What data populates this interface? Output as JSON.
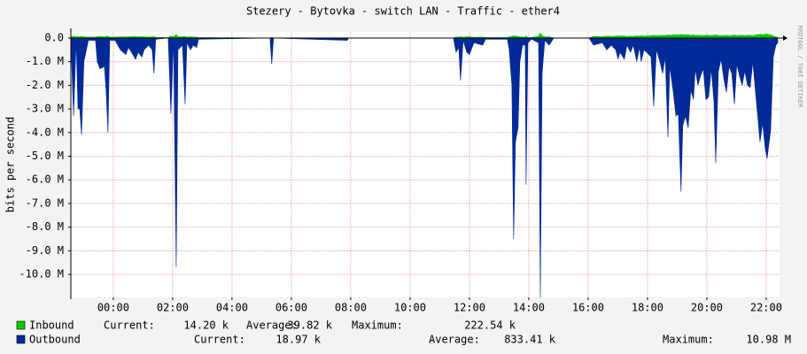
{
  "chart_data": {
    "type": "area",
    "title": "Stezery - Bytovka - switch LAN - Traffic - ether4",
    "y_label": "bits per second",
    "side_note": "RRDTOOL / TOBI OETIKER",
    "xlim": [
      -1.43,
      22.45
    ],
    "xticks": [
      {
        "value": 0,
        "label": "00:00"
      },
      {
        "value": 2,
        "label": "02:00"
      },
      {
        "value": 4,
        "label": "04:00"
      },
      {
        "value": 6,
        "label": "06:00"
      },
      {
        "value": 8,
        "label": "08:00"
      },
      {
        "value": 10,
        "label": "10:00"
      },
      {
        "value": 12,
        "label": "12:00"
      },
      {
        "value": 14,
        "label": "14:00"
      },
      {
        "value": 16,
        "label": "16:00"
      },
      {
        "value": 18,
        "label": "18:00"
      },
      {
        "value": 20,
        "label": "20:00"
      },
      {
        "value": 22,
        "label": "22:00"
      }
    ],
    "ylim": [
      -10.97,
      0.26
    ],
    "yticks": [
      {
        "value": 0,
        "label": "0.0"
      },
      {
        "value": -1,
        "label": "-1.0 M"
      },
      {
        "value": -2,
        "label": "-2.0 M"
      },
      {
        "value": -3,
        "label": "-3.0 M"
      },
      {
        "value": -4,
        "label": "-4.0 M"
      },
      {
        "value": -5,
        "label": "-5.0 M"
      },
      {
        "value": -6,
        "label": "-6.0 M"
      },
      {
        "value": -7,
        "label": "-7.0 M"
      },
      {
        "value": -8,
        "label": "-8.0 M"
      },
      {
        "value": -9,
        "label": "-9.0 M"
      },
      {
        "value": -10,
        "label": "-10.0 M"
      }
    ],
    "grid": true,
    "x": [
      -1.43,
      -1.34,
      -1.25,
      -1.19,
      -1.13,
      -1.07,
      -0.99,
      -0.84,
      -0.6,
      -0.54,
      -0.45,
      -0.3,
      -0.24,
      -0.18,
      -0.12,
      0.06,
      0.24,
      0.42,
      0.51,
      0.66,
      0.75,
      0.84,
      0.96,
      1.04,
      1.19,
      1.31,
      1.37,
      1.43,
      1.85,
      1.94,
      2.03,
      2.12,
      2.18,
      2.33,
      2.42,
      2.48,
      2.6,
      2.69,
      2.81,
      2.87,
      5.28,
      5.34,
      5.4,
      7.88,
      7.94,
      11.46,
      11.55,
      11.64,
      11.7,
      11.79,
      11.91,
      12.0,
      12.15,
      12.45,
      12.54,
      13.28,
      13.34,
      13.43,
      13.49,
      13.55,
      13.64,
      13.7,
      13.79,
      13.88,
      13.91,
      13.97,
      14.09,
      14.33,
      14.39,
      14.45,
      14.54,
      14.69,
      14.84,
      16.03,
      16.18,
      16.48,
      16.63,
      16.78,
      16.93,
      17.01,
      17.07,
      17.22,
      17.31,
      17.43,
      17.52,
      17.64,
      17.73,
      17.79,
      17.88,
      17.97,
      18.12,
      18.21,
      18.3,
      18.42,
      18.51,
      18.6,
      18.69,
      18.75,
      18.87,
      18.96,
      19.04,
      19.13,
      19.19,
      19.28,
      19.37,
      19.46,
      19.55,
      19.61,
      19.7,
      19.79,
      19.88,
      19.97,
      20.06,
      20.15,
      20.24,
      20.3,
      20.39,
      20.48,
      20.57,
      20.66,
      20.75,
      20.84,
      20.93,
      21.01,
      21.1,
      21.19,
      21.28,
      21.37,
      21.46,
      21.55,
      21.64,
      21.73,
      21.79,
      21.88,
      21.97,
      22.03,
      22.09,
      22.15,
      22.24,
      22.33,
      22.39
    ],
    "series": [
      {
        "name": "Outbound",
        "color": "#002a97",
        "stats": [
          {
            "label": "Current:",
            "value": "18.97 k"
          },
          {
            "label": "Average:",
            "value": "833.41 k"
          },
          {
            "label": "Maximum:",
            "value": "10.98 M"
          }
        ],
        "values": [
          0,
          -3.3,
          -0.1,
          -3.0,
          -3.0,
          -4.1,
          -1.0,
          -0.1,
          -0.1,
          -1.0,
          -1.3,
          -1.2,
          -2.3,
          -4.0,
          -0.1,
          -0.1,
          -0.5,
          -0.7,
          -0.4,
          -0.7,
          -0.9,
          -0.6,
          -0.8,
          -0.5,
          -0.3,
          -0.5,
          -1.5,
          -0.05,
          0,
          -3.2,
          -0.1,
          -9.7,
          -0.5,
          -0.3,
          -2.8,
          -0.2,
          -0.5,
          -0.3,
          -0.4,
          -0.05,
          0,
          -1.1,
          0,
          -0.1,
          0,
          0,
          -0.6,
          -0.4,
          -1.8,
          -0.1,
          -0.6,
          -0.7,
          -0.2,
          -0.3,
          -0.05,
          -0.05,
          -0.5,
          -2.0,
          -8.5,
          -4.4,
          -3.8,
          -1.0,
          -0.3,
          -0.3,
          -6.2,
          -0.2,
          -0.05,
          -0.2,
          -10.98,
          -1.5,
          -0.1,
          -0.3,
          0,
          0,
          -0.3,
          -0.2,
          -0.5,
          -0.3,
          -0.5,
          -0.9,
          -0.6,
          -0.9,
          -0.3,
          -0.6,
          -0.3,
          -1.0,
          -0.4,
          -1.0,
          -0.5,
          -0.6,
          -0.8,
          -2.9,
          -0.5,
          -1.0,
          -1.5,
          -0.8,
          -4.2,
          -1.2,
          -2.3,
          -3.3,
          -3.2,
          -6.5,
          -3.7,
          -3.3,
          -3.8,
          -2.2,
          -2.6,
          -1.3,
          -2.0,
          -1.6,
          -1.3,
          -2.6,
          -2.5,
          -1.3,
          -2.7,
          -5.3,
          -1.4,
          -0.9,
          -1.7,
          -2.3,
          -1.2,
          -1.5,
          -2.8,
          -1.1,
          -1.6,
          -2.0,
          -1.4,
          -2.0,
          -2.1,
          -1.0,
          -2.3,
          -3.5,
          -4.4,
          -3.6,
          -4.7,
          -5.1,
          -4.5,
          -3.9,
          -0.8,
          -0.3,
          -0.2
        ]
      },
      {
        "name": "Inbound",
        "color": "#00cc00",
        "stats": [
          {
            "label": "Current:",
            "value": "14.20 k"
          },
          {
            "label": "Average:",
            "value": "39.82 k"
          },
          {
            "label": "Maximum:",
            "value": "222.54 k"
          }
        ],
        "values": [
          0.05,
          0.08,
          0.05,
          0.06,
          0.05,
          0.07,
          0.05,
          0.04,
          0.04,
          0.06,
          0.06,
          0.05,
          0.07,
          0.08,
          0.04,
          0.04,
          0.05,
          0.05,
          0.05,
          0.06,
          0.06,
          0.05,
          0.06,
          0.05,
          0.04,
          0.05,
          0.06,
          0.02,
          0.02,
          0.08,
          0.05,
          0.15,
          0.06,
          0.05,
          0.07,
          0.04,
          0.05,
          0.04,
          0.04,
          0.02,
          0,
          0.03,
          0,
          0.01,
          0,
          0,
          0.05,
          0.04,
          0.06,
          0.03,
          0.05,
          0.05,
          0.03,
          0.04,
          0.02,
          0.02,
          0.05,
          0.07,
          0.1,
          0.08,
          0.07,
          0.05,
          0.04,
          0.04,
          0.08,
          0.03,
          0.02,
          0.08,
          0.22,
          0.1,
          0.05,
          0.05,
          0,
          0,
          0.07,
          0.06,
          0.08,
          0.07,
          0.08,
          0.09,
          0.08,
          0.09,
          0.07,
          0.08,
          0.07,
          0.09,
          0.08,
          0.1,
          0.08,
          0.09,
          0.1,
          0.12,
          0.1,
          0.11,
          0.12,
          0.1,
          0.14,
          0.12,
          0.13,
          0.14,
          0.13,
          0.15,
          0.14,
          0.13,
          0.14,
          0.12,
          0.13,
          0.11,
          0.12,
          0.11,
          0.1,
          0.12,
          0.12,
          0.1,
          0.12,
          0.14,
          0.11,
          0.1,
          0.11,
          0.12,
          0.1,
          0.11,
          0.13,
          0.1,
          0.11,
          0.12,
          0.1,
          0.12,
          0.12,
          0.1,
          0.13,
          0.15,
          0.16,
          0.14,
          0.16,
          0.17,
          0.15,
          0.14,
          0.08,
          0.05,
          0.04
        ]
      }
    ]
  }
}
